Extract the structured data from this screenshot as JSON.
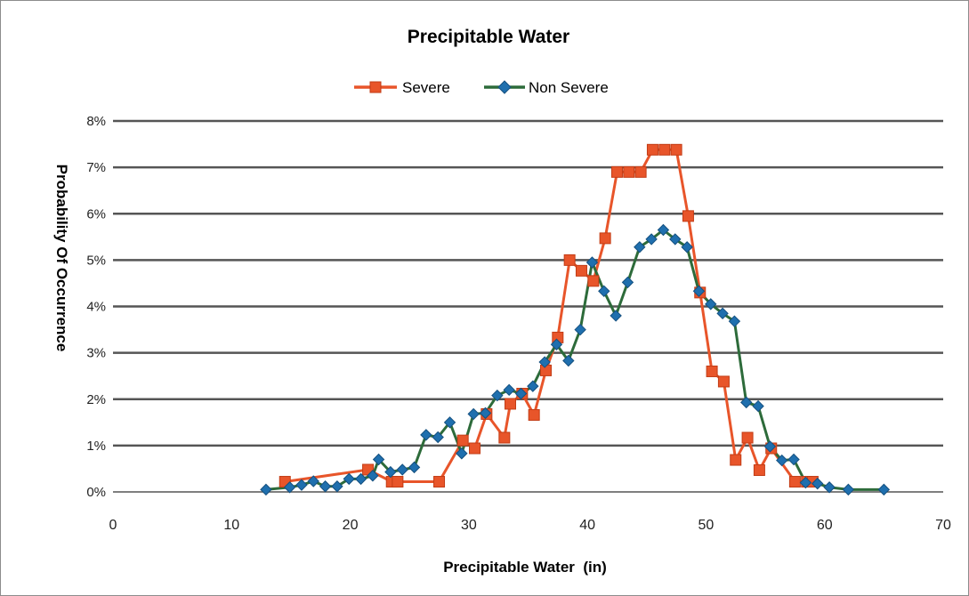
{
  "chart_data": {
    "type": "line",
    "title": "Precipitable Water",
    "xlabel": "Precipitable Water  (in)",
    "ylabel": "Probability Of Occurrence",
    "xlim": [
      0,
      70
    ],
    "ylim": [
      0,
      0.08
    ],
    "x_ticks": [
      "0",
      "10",
      "20",
      "30",
      "40",
      "50",
      "60",
      "70"
    ],
    "y_ticks": [
      "0%",
      "1%",
      "2%",
      "3%",
      "4%",
      "5%",
      "6%",
      "7%",
      "8%"
    ],
    "grid": "horizontal",
    "legend_position": "top",
    "series": [
      {
        "name": "Severe",
        "color": "#e8552a",
        "marker": "square",
        "marker_color": "#e8552a",
        "points": [
          [
            14.5,
            0.0022
          ],
          [
            21.5,
            0.0048
          ],
          [
            23.5,
            0.0022
          ],
          [
            24,
            0.0022
          ],
          [
            27.5,
            0.0022
          ],
          [
            29.5,
            0.0111
          ],
          [
            30.5,
            0.0094
          ],
          [
            31.5,
            0.0168
          ],
          [
            33,
            0.0117
          ],
          [
            33.5,
            0.019
          ],
          [
            34.5,
            0.0212
          ],
          [
            35.5,
            0.0166
          ],
          [
            36.5,
            0.0262
          ],
          [
            37.5,
            0.0333
          ],
          [
            38.5,
            0.05
          ],
          [
            39.5,
            0.0477
          ],
          [
            40.5,
            0.0455
          ],
          [
            41.5,
            0.0547
          ],
          [
            42.5,
            0.069
          ],
          [
            43.5,
            0.069
          ],
          [
            44.5,
            0.069
          ],
          [
            45.5,
            0.0738
          ],
          [
            46.5,
            0.0738
          ],
          [
            47.5,
            0.0738
          ],
          [
            48.5,
            0.0595
          ],
          [
            49.5,
            0.043
          ],
          [
            50.5,
            0.026
          ],
          [
            51.5,
            0.0238
          ],
          [
            52.5,
            0.0069
          ],
          [
            53.5,
            0.0117
          ],
          [
            54.5,
            0.0047
          ],
          [
            55.5,
            0.0094
          ],
          [
            57.5,
            0.0022
          ],
          [
            58.5,
            0.0022
          ],
          [
            59,
            0.0022
          ]
        ]
      },
      {
        "name": "Non Severe",
        "color": "#2d6b3a",
        "marker": "diamond",
        "marker_color": "#1f6fae",
        "points": [
          [
            12.9,
            0.0005
          ],
          [
            14.9,
            0.001
          ],
          [
            15.9,
            0.0015
          ],
          [
            16.9,
            0.0023
          ],
          [
            17.9,
            0.0012
          ],
          [
            18.9,
            0.0012
          ],
          [
            19.9,
            0.0028
          ],
          [
            20.9,
            0.0028
          ],
          [
            21.9,
            0.0035
          ],
          [
            22.4,
            0.007
          ],
          [
            23.4,
            0.0043
          ],
          [
            24.4,
            0.0048
          ],
          [
            25.4,
            0.0053
          ],
          [
            26.4,
            0.0123
          ],
          [
            27.4,
            0.0118
          ],
          [
            28.4,
            0.015
          ],
          [
            29.4,
            0.0083
          ],
          [
            30.4,
            0.0168
          ],
          [
            31.4,
            0.017
          ],
          [
            32.4,
            0.0208
          ],
          [
            33.4,
            0.022
          ],
          [
            34.4,
            0.0212
          ],
          [
            35.4,
            0.0228
          ],
          [
            36.4,
            0.028
          ],
          [
            37.4,
            0.0318
          ],
          [
            38.4,
            0.0283
          ],
          [
            39.4,
            0.035
          ],
          [
            40.4,
            0.0495
          ],
          [
            41.4,
            0.0433
          ],
          [
            42.4,
            0.038
          ],
          [
            43.4,
            0.0452
          ],
          [
            44.4,
            0.0528
          ],
          [
            45.4,
            0.0545
          ],
          [
            46.4,
            0.0565
          ],
          [
            47.4,
            0.0545
          ],
          [
            48.4,
            0.0528
          ],
          [
            49.4,
            0.0433
          ],
          [
            50.4,
            0.0405
          ],
          [
            51.4,
            0.0385
          ],
          [
            52.4,
            0.0368
          ],
          [
            53.4,
            0.0193
          ],
          [
            54.4,
            0.0185
          ],
          [
            55.4,
            0.0098
          ],
          [
            56.4,
            0.0068
          ],
          [
            57.4,
            0.007
          ],
          [
            58.4,
            0.002
          ],
          [
            59.4,
            0.0018
          ],
          [
            60.4,
            0.001
          ],
          [
            62,
            0.0005
          ],
          [
            65,
            0.0005
          ]
        ]
      }
    ]
  }
}
